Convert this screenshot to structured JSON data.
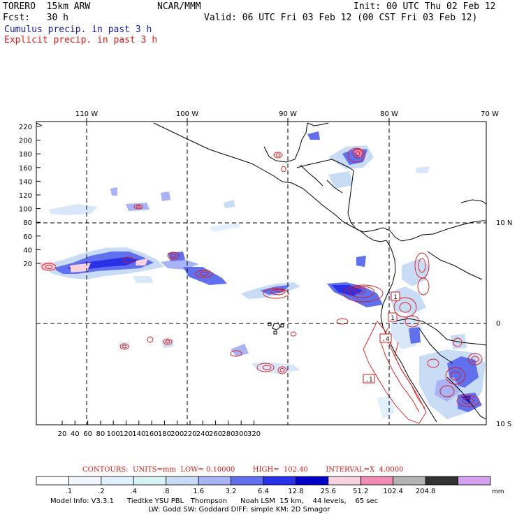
{
  "header": {
    "model_name": "TORERO  15km ARW",
    "org": "NCAR/MMM",
    "init": "Init: 00 UTC Thu 02 Feb 12",
    "fcst": "Fcst:   30 h",
    "valid": "Valid: 06 UTC Fri 03 Feb 12 (00 CST Fri 03 Feb 12)",
    "field1": "Cumulus precip. in past 3 h",
    "field2": "Explicit precip. in past 3 h"
  },
  "axes": {
    "top_lon_labels": [
      "110 W",
      "100 W",
      "90 W",
      "80 W",
      "70 W"
    ],
    "right_lat_labels": [
      "10 N",
      "0",
      "10 S"
    ],
    "left_ticks": [
      "220",
      "200",
      "180",
      "160",
      "140",
      "120",
      "100",
      "80",
      "60",
      "40",
      "20"
    ],
    "bottom_ticks": [
      "20",
      "40",
      "60",
      "80",
      "100",
      "120",
      "140",
      "160",
      "180",
      "200",
      "220",
      "240",
      "260",
      "280",
      "300",
      "320"
    ]
  },
  "contour_labels": [
    "1",
    "1",
    ".4",
    ".1"
  ],
  "contour_info": "CONTOURS:  UNITS=mm  LOW= 0.10000        HIGH=  102.40        INTERVAL=X  4.0000",
  "colorbar": {
    "labels": [
      ".1",
      ".2",
      ".4",
      ".8",
      "1.6",
      "3.2",
      "6.4",
      "12.8",
      "25.6",
      "51.2",
      "102.4",
      "204.8"
    ],
    "unit": "mm",
    "colors": [
      "#ffffff",
      "#f2f7ff",
      "#e0f0ff",
      "#d8f5f5",
      "#c8dcf5",
      "#a8b4f5",
      "#6070ee",
      "#2830e8",
      "#0000c8",
      "#f8d2dc",
      "#f08cb4",
      "#b4b4b4",
      "#333333",
      "#d8a0f0"
    ]
  },
  "footer": {
    "line1": "Model Info: V3.3.1      Tiedtke YSU PBL   Thompson      Noah LSM  15 km,    44 levels,    65 sec",
    "line2": "LW: Godd SW: Goddard DIFF: simple KM: 2D Smagor"
  }
}
